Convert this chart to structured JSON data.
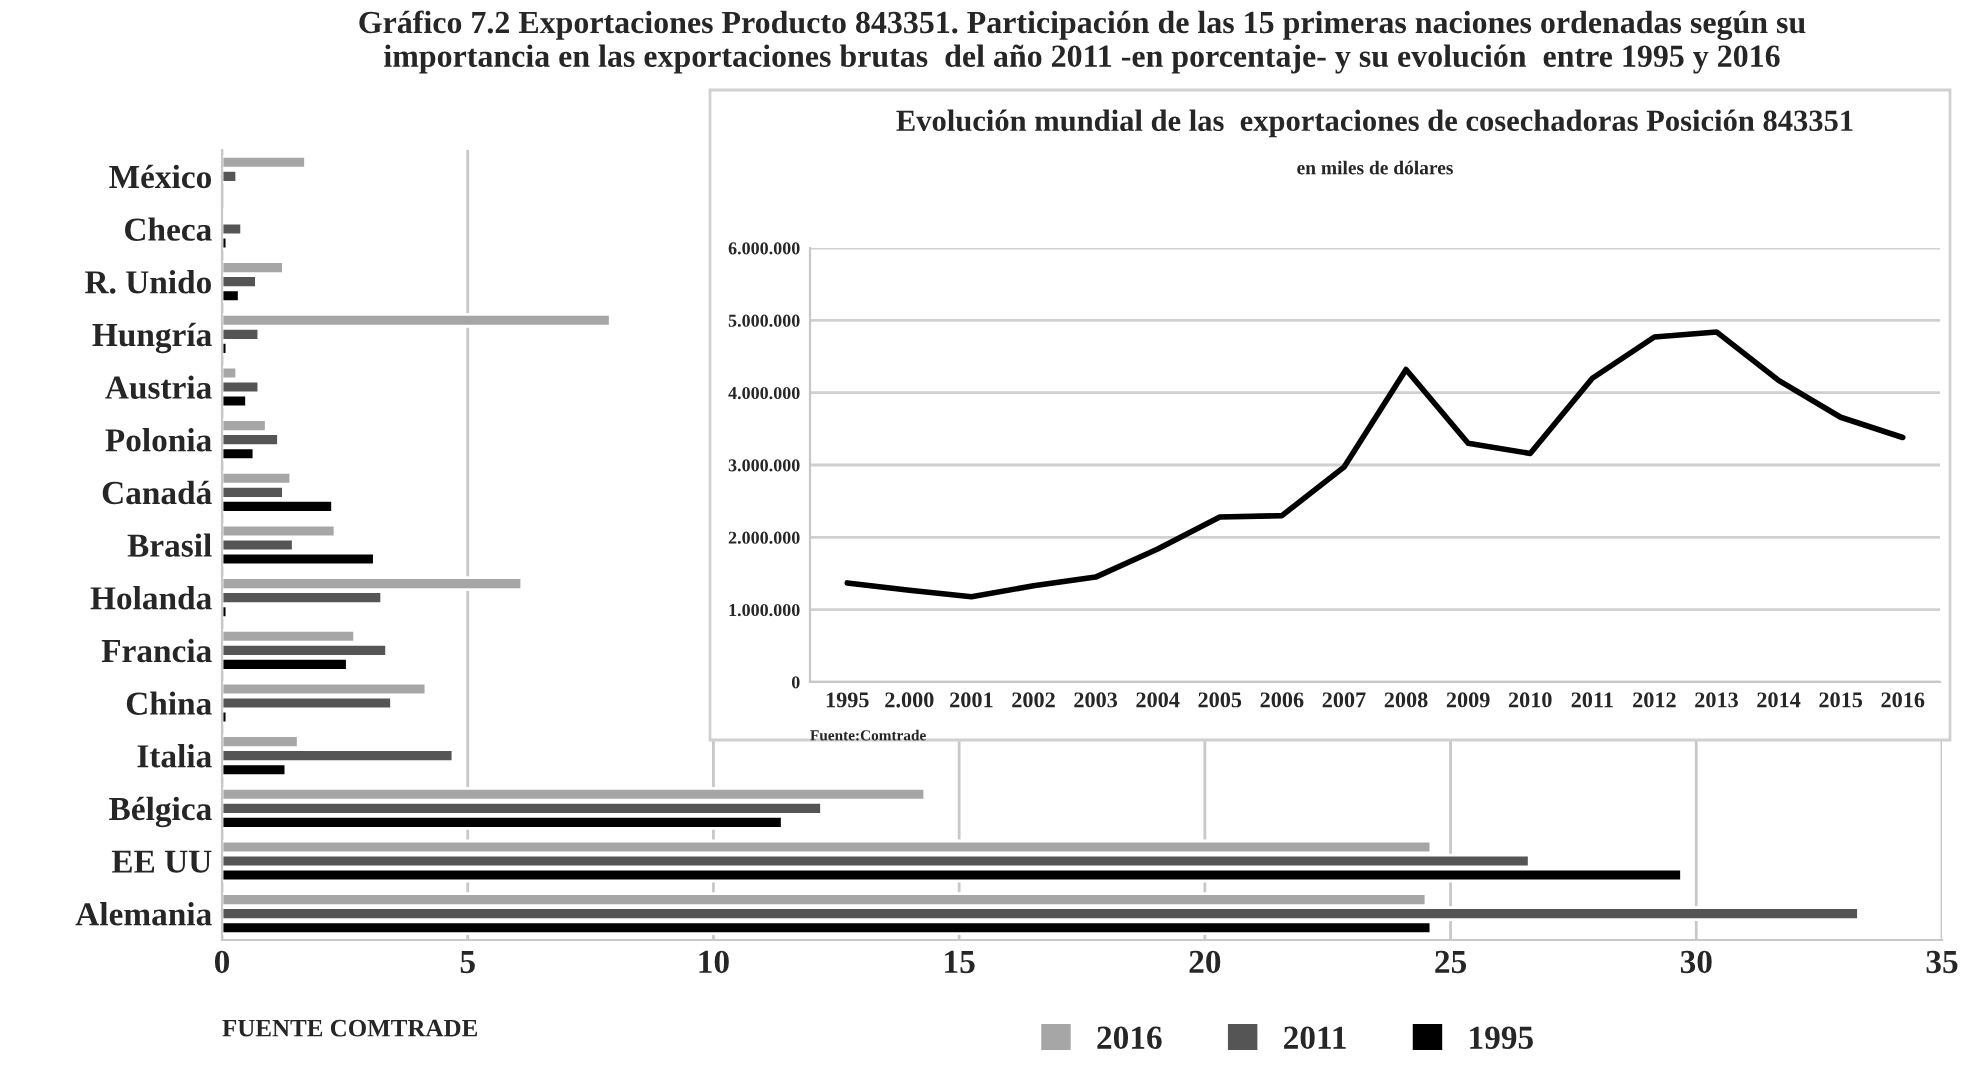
{
  "chart_data": [
    {
      "type": "bar",
      "orientation": "horizontal",
      "title": "Gráfico 7.2 Exportaciones Producto 843351. Participación de las 15 primeras naciones ordenadas según su\nimportancia en las exportaciones brutas  del año 2011 -en porcentaje- y su evolución  entre 1995 y 2016",
      "categories": [
        "México",
        "Checa",
        "R. Unido",
        "Hungría",
        "Austria",
        "Polonia",
        "Canadá",
        "Brasil",
        "Holanda",
        "Francia",
        "China",
        "Italia",
        "Bélgica",
        "EE UU",
        "Alemania"
      ],
      "series": [
        {
          "name": "2016",
          "color": "#a6a6a6",
          "values": [
            1.7,
            0.05,
            1.25,
            7.9,
            0.3,
            0.9,
            1.4,
            2.3,
            6.1,
            2.7,
            4.15,
            1.55,
            14.3,
            24.6,
            24.5
          ]
        },
        {
          "name": "2011",
          "color": "#555555",
          "values": [
            0.3,
            0.4,
            0.7,
            0.75,
            0.75,
            1.15,
            1.25,
            1.45,
            3.25,
            3.35,
            3.45,
            4.7,
            12.2,
            26.6,
            33.3
          ]
        },
        {
          "name": "1995",
          "color": "#000000",
          "values": [
            null,
            0.1,
            0.35,
            0.1,
            0.5,
            0.65,
            2.25,
            3.1,
            0.1,
            2.55,
            0.1,
            1.3,
            11.4,
            29.7,
            24.6
          ]
        }
      ],
      "xlim": [
        0,
        35
      ],
      "xticks": [
        0,
        5,
        10,
        15,
        20,
        25,
        30,
        35
      ],
      "grid": "x",
      "legend": "bottom",
      "annotations": [
        "FUENTE COMTRADE"
      ]
    },
    {
      "type": "line",
      "title": "Evolución mundial de las  exportaciones de cosechadoras Posición 843351",
      "subtitle": "en miles de dólares",
      "categories": [
        "1995",
        "2.000",
        "2001",
        "2002",
        "2003",
        "2004",
        "2005",
        "2006",
        "2007",
        "2008",
        "2009",
        "2010",
        "2011",
        "2012",
        "2013",
        "2014",
        "2015",
        "2016"
      ],
      "series": [
        {
          "color": "#000000",
          "values": [
            1370000,
            1270000,
            1180000,
            1330000,
            1450000,
            1840000,
            2280000,
            2300000,
            2970000,
            4320000,
            3300000,
            3160000,
            4200000,
            4770000,
            4840000,
            4170000,
            3660000,
            3380000
          ]
        }
      ],
      "ylim": [
        0,
        6000000
      ],
      "yticks": [
        0,
        {
          "value": 1000000,
          "label": "1.000.000"
        },
        {
          "value": 2000000,
          "label": "2.000.000"
        },
        {
          "value": 3000000,
          "label": "3.000.000"
        },
        {
          "value": 4000000,
          "label": "4.000.000"
        },
        {
          "value": 5000000,
          "label": "5.000.000"
        },
        {
          "value": 6000000,
          "label": "6.000.000"
        }
      ],
      "grid": "y",
      "annotations": [
        "Fuente:Comtrade"
      ]
    }
  ]
}
